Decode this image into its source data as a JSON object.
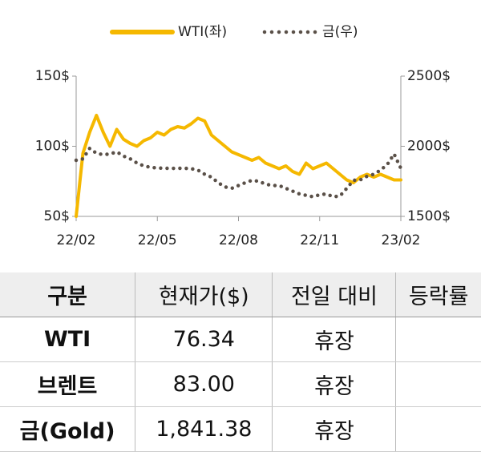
{
  "chart_data": {
    "type": "line",
    "x": [
      0,
      0.25,
      0.5,
      0.75,
      1,
      1.25,
      1.5,
      1.75,
      2,
      2.25,
      2.5,
      2.75,
      3,
      3.25,
      3.5,
      3.75,
      4,
      4.25,
      4.5,
      4.75,
      5,
      5.25,
      5.5,
      5.75,
      6,
      6.25,
      6.5,
      6.75,
      7,
      7.25,
      7.5,
      7.75,
      8,
      8.25,
      8.5,
      8.75,
      9,
      9.25,
      9.5,
      9.75,
      10,
      10.25,
      10.5,
      10.75,
      11,
      11.25,
      11.5,
      11.75,
      12
    ],
    "series": [
      {
        "name": "WTI(좌)",
        "color": "#f5b800",
        "axis": "y",
        "values": [
          50,
          95,
          110,
          122,
          110,
          100,
          112,
          105,
          102,
          100,
          104,
          106,
          110,
          108,
          112,
          114,
          113,
          116,
          120,
          118,
          108,
          104,
          100,
          96,
          94,
          92,
          90,
          92,
          88,
          86,
          84,
          86,
          82,
          80,
          88,
          84,
          86,
          88,
          84,
          80,
          76,
          74,
          78,
          80,
          78,
          80,
          78,
          76,
          76
        ]
      },
      {
        "name": "금(우)",
        "color": "#5a5048",
        "axis": "y2",
        "values": [
          1900,
          1910,
          1985,
          1950,
          1940,
          1945,
          1960,
          1930,
          1910,
          1880,
          1860,
          1850,
          1845,
          1843,
          1842,
          1843,
          1843,
          1840,
          1830,
          1800,
          1780,
          1740,
          1710,
          1700,
          1720,
          1740,
          1757,
          1750,
          1730,
          1720,
          1720,
          1700,
          1680,
          1660,
          1650,
          1640,
          1654,
          1660,
          1640,
          1645,
          1700,
          1757,
          1760,
          1786,
          1800,
          1830,
          1870,
          1945,
          1843
        ]
      }
    ],
    "xlim": [
      0,
      12
    ],
    "xticks": [
      {
        "value": 0,
        "label": "22/02"
      },
      {
        "value": 3,
        "label": "22/05"
      },
      {
        "value": 6,
        "label": "22/08"
      },
      {
        "value": 9,
        "label": "22/11"
      },
      {
        "value": 12,
        "label": "23/02"
      }
    ],
    "ylim": [
      50,
      150
    ],
    "yticks": [
      {
        "value": 50,
        "label": "50$"
      },
      {
        "value": 100,
        "label": "100$"
      },
      {
        "value": 150,
        "label": "150$"
      }
    ],
    "y2lim": [
      1500,
      2500
    ],
    "y2ticks": [
      {
        "value": 1500,
        "label": "1500$"
      },
      {
        "value": 2000,
        "label": "2000$"
      },
      {
        "value": 2500,
        "label": "2500$"
      }
    ]
  },
  "table": {
    "header": [
      "구분",
      "현재가($)",
      "전일 대비",
      "등락률"
    ],
    "rows": [
      [
        "WTI",
        "76.34",
        "휴장"
      ],
      [
        "브렌트",
        "83.00",
        "휴장"
      ],
      [
        "금(Gold)",
        "1,841.38",
        "휴장"
      ]
    ]
  }
}
